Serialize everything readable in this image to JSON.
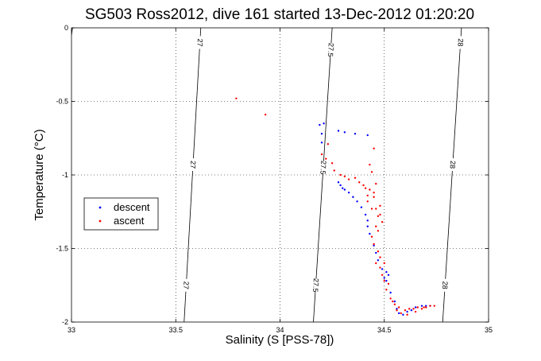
{
  "chart_data": {
    "type": "scatter",
    "title": "SG503 Ross2012, dive 161 started 13-Dec-2012 01:20:20",
    "xlabel": "Salinity (S [PSS-78])",
    "ylabel": "Temperature (°C)",
    "xlim": [
      33,
      35
    ],
    "ylim": [
      -2,
      0
    ],
    "x_ticks": [
      "33",
      "33.5",
      "34",
      "34.5",
      "35"
    ],
    "y_ticks": [
      "0",
      "-0.5",
      "-1",
      "-1.5",
      "-2"
    ],
    "grid": true,
    "legend_position": "left",
    "colors": {
      "descent": "#0000ff",
      "ascent": "#ff0000"
    },
    "contours": [
      {
        "label": "27",
        "x_top": 33.62,
        "x_bottom": 33.54,
        "label_T": [
          -0.1,
          -0.93,
          -1.75
        ]
      },
      {
        "label": "27.5",
        "x_top": 34.25,
        "x_bottom": 34.16,
        "label_T": [
          -0.15,
          -0.95,
          -1.75
        ]
      },
      {
        "label": "28",
        "x_top": 34.87,
        "x_bottom": 34.78,
        "label_T": [
          -0.1,
          -0.93,
          -1.75
        ]
      }
    ],
    "series": [
      {
        "name": "descent",
        "marker": "dot",
        "points": [
          [
            34.21,
            -0.65
          ],
          [
            34.19,
            -0.66
          ],
          [
            34.2,
            -0.72
          ],
          [
            34.2,
            -0.78
          ],
          [
            34.28,
            -0.7
          ],
          [
            34.31,
            -0.71
          ],
          [
            34.36,
            -0.72
          ],
          [
            34.42,
            -0.73
          ],
          [
            34.28,
            -1.05
          ],
          [
            34.29,
            -1.07
          ],
          [
            34.3,
            -1.09
          ],
          [
            34.31,
            -1.1
          ],
          [
            34.33,
            -1.12
          ],
          [
            34.35,
            -1.15
          ],
          [
            34.37,
            -1.18
          ],
          [
            34.39,
            -1.22
          ],
          [
            34.41,
            -1.27
          ],
          [
            34.42,
            -1.31
          ],
          [
            34.42,
            -1.35
          ],
          [
            34.43,
            -1.4
          ],
          [
            34.45,
            -1.48
          ],
          [
            34.46,
            -1.53
          ],
          [
            34.47,
            -1.58
          ],
          [
            34.49,
            -1.64
          ],
          [
            34.51,
            -1.66
          ],
          [
            34.5,
            -1.7
          ],
          [
            34.52,
            -1.68
          ],
          [
            34.51,
            -1.72
          ],
          [
            34.53,
            -1.8
          ],
          [
            34.55,
            -1.86
          ],
          [
            34.56,
            -1.91
          ],
          [
            34.57,
            -1.94
          ],
          [
            34.59,
            -1.95
          ],
          [
            34.61,
            -1.93
          ],
          [
            34.63,
            -1.92
          ],
          [
            34.65,
            -1.9
          ],
          [
            34.68,
            -1.89
          ],
          [
            34.7,
            -1.89
          ],
          [
            34.72,
            -1.89
          ]
        ]
      },
      {
        "name": "ascent",
        "marker": "dot",
        "points": [
          [
            33.79,
            -0.48
          ],
          [
            33.93,
            -0.59
          ],
          [
            34.23,
            -0.79
          ],
          [
            34.2,
            -0.86
          ],
          [
            34.22,
            -0.89
          ],
          [
            34.25,
            -0.92
          ],
          [
            34.26,
            -0.97
          ],
          [
            34.29,
            -1.0
          ],
          [
            34.31,
            -1.01
          ],
          [
            34.33,
            -1.03
          ],
          [
            34.36,
            -1.02
          ],
          [
            34.38,
            -1.05
          ],
          [
            34.4,
            -1.07
          ],
          [
            34.43,
            -1.1
          ],
          [
            34.45,
            -1.15
          ],
          [
            34.42,
            -1.18
          ],
          [
            34.44,
            -1.23
          ],
          [
            34.47,
            -1.28
          ],
          [
            34.46,
            -1.35
          ],
          [
            34.44,
            -1.42
          ],
          [
            34.45,
            -1.47
          ],
          [
            34.47,
            -1.52
          ],
          [
            34.48,
            -1.56
          ],
          [
            34.46,
            -1.6
          ],
          [
            34.48,
            -1.63
          ],
          [
            34.49,
            -1.68
          ],
          [
            34.5,
            -1.72
          ],
          [
            34.51,
            -1.78
          ],
          [
            34.53,
            -1.84
          ],
          [
            34.55,
            -1.88
          ],
          [
            34.56,
            -1.92
          ],
          [
            34.58,
            -1.94
          ],
          [
            34.6,
            -1.92
          ],
          [
            34.62,
            -1.91
          ],
          [
            34.64,
            -1.91
          ],
          [
            34.66,
            -1.9
          ],
          [
            34.69,
            -1.9
          ],
          [
            34.72,
            -1.89
          ],
          [
            34.45,
            -0.82
          ],
          [
            34.43,
            -0.93
          ],
          [
            34.44,
            -0.98
          ],
          [
            34.46,
            -1.06
          ],
          [
            34.41,
            -1.09
          ],
          [
            34.42,
            -1.14
          ],
          [
            34.48,
            -1.21
          ],
          [
            34.48,
            -1.27
          ],
          [
            34.49,
            -1.32
          ],
          [
            34.45,
            -1.12
          ],
          [
            34.46,
            -1.23
          ],
          [
            34.47,
            -1.38
          ],
          [
            34.5,
            -1.6
          ],
          [
            34.52,
            -1.74
          ],
          [
            34.54,
            -1.86
          ],
          [
            34.57,
            -1.9
          ],
          [
            34.61,
            -1.95
          ],
          [
            34.65,
            -1.93
          ],
          [
            34.68,
            -1.91
          ],
          [
            34.7,
            -1.9
          ],
          [
            34.74,
            -1.89
          ]
        ]
      }
    ]
  }
}
